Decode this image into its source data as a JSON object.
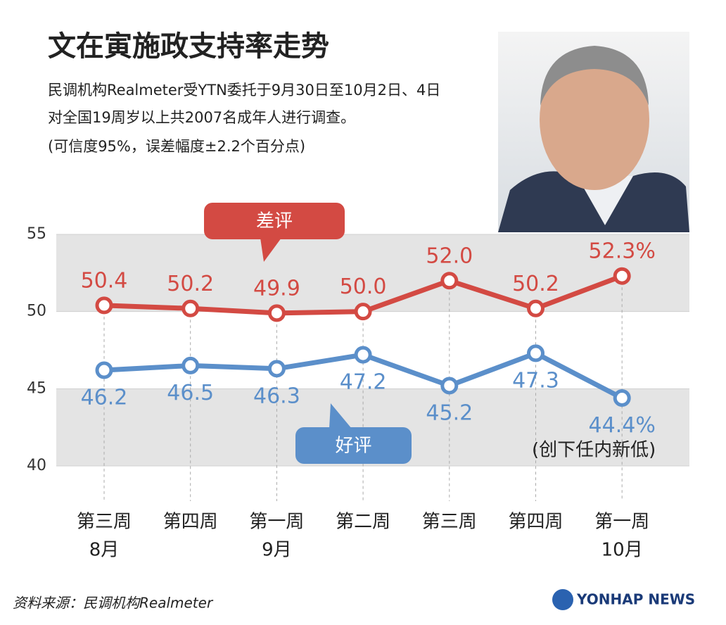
{
  "chart_data": {
    "type": "line",
    "title": "文在寅施政支持率走势",
    "subtitle": [
      "民调机构Realmeter受YTN委托于9月30日至10月2日、4日",
      "对全国19周岁以上共2007名成年人进行调查。",
      "(可信度95%，误差幅度±2.2个百分点)"
    ],
    "categories": [
      "第三周",
      "第四周",
      "第一周",
      "第二周",
      "第三周",
      "第四周",
      "第一周"
    ],
    "category_groups": [
      "8月",
      null,
      "9月",
      null,
      null,
      null,
      "10月"
    ],
    "series": [
      {
        "name": "差评",
        "color": "#d34a43",
        "values": [
          50.4,
          50.2,
          49.9,
          50.0,
          52.0,
          50.2,
          52.3
        ],
        "value_labels": [
          "50.4",
          "50.2",
          "49.9",
          "50.0",
          "52.0",
          "50.2",
          "52.3%"
        ]
      },
      {
        "name": "好评",
        "color": "#5b8fca",
        "values": [
          46.2,
          46.5,
          46.3,
          47.2,
          45.2,
          47.3,
          44.4
        ],
        "value_labels": [
          "46.2",
          "46.5",
          "46.3",
          "47.2",
          "45.2",
          "47.3",
          "44.4%"
        ]
      }
    ],
    "annotation": "(创下任内新低)",
    "ylim": [
      40,
      55
    ],
    "yticks": [
      40,
      45,
      50,
      55
    ],
    "source": "资料来源：民调机构Realmeter",
    "logo": "YONHAP NEWS"
  }
}
